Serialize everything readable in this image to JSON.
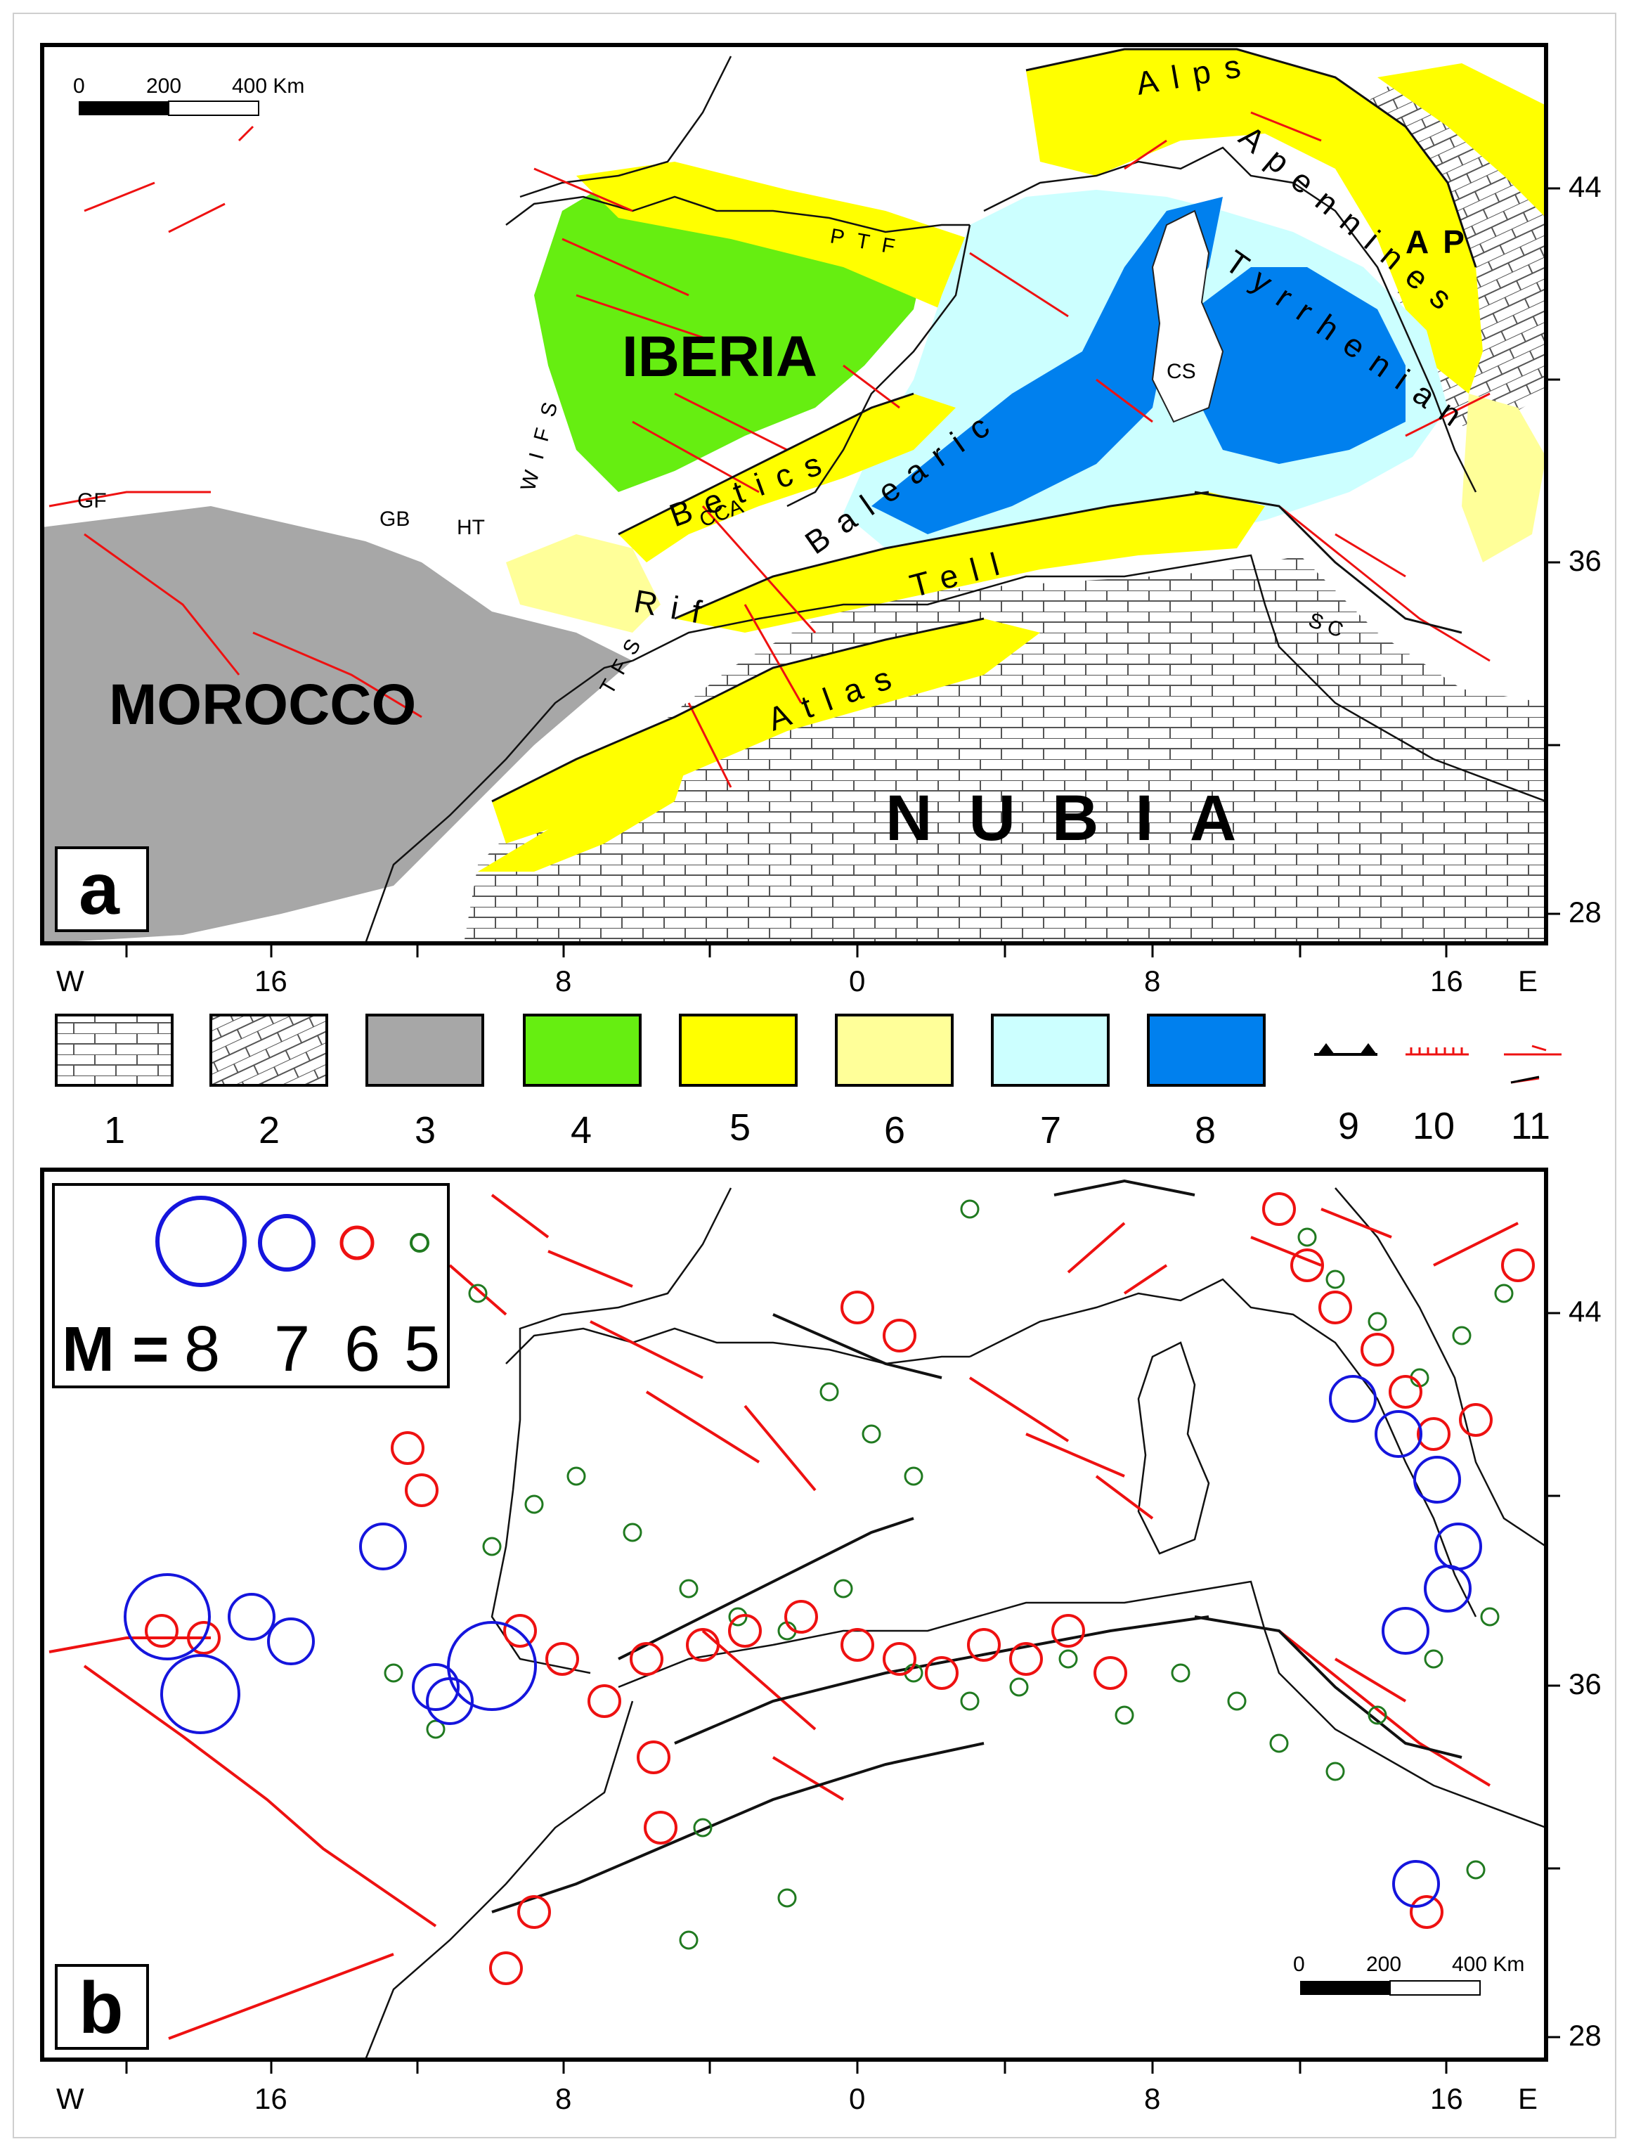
{
  "panel_a": {
    "letter": "a",
    "scale": {
      "t0": "0",
      "t1": "200",
      "t2": "400 Km"
    },
    "regions": {
      "iberia": "IBERIA",
      "morocco": "MOROCCO",
      "nubia": "NUBIA"
    },
    "belts": {
      "alps": "Alps",
      "apennines": "Apennines",
      "ap": "AP",
      "betics": "Betics",
      "balearic": "Balearic",
      "tyrrhenian": "Tyrrhenian",
      "tell": "Tell",
      "atlas": "Atlas",
      "rif": "Rif"
    },
    "abbreviations": {
      "gf": "GF",
      "gb": "GB",
      "ht": "HT",
      "wifs": "WIFS",
      "ptf": "PTF",
      "cca": "CCA",
      "tfs": "TFS",
      "cs": "CS",
      "sc": "SC"
    },
    "lat_labels": [
      "44",
      "36",
      "28"
    ],
    "lon_labels": {
      "w": "W",
      "e": "E",
      "l16w": "16",
      "l8w": "8",
      "l0": "0",
      "l8e": "8",
      "l16e": "16"
    }
  },
  "legend": {
    "items": [
      "1",
      "2",
      "3",
      "4",
      "5",
      "6",
      "7",
      "8",
      "9",
      "10",
      "11"
    ],
    "colors": {
      "c3": "#a7a7a7",
      "c4": "#66ee11",
      "c5": "#ffff00",
      "c6": "#ffff99",
      "c7": "#ccffff",
      "c8": "#0080ee",
      "fault": "#ee1111"
    }
  },
  "panel_b": {
    "letter": "b",
    "magnitude_label": "M =",
    "magnitudes": [
      "8",
      "7",
      "6",
      "5"
    ],
    "scale": {
      "t0": "0",
      "t1": "200",
      "t2": "400 Km"
    },
    "lat_labels": [
      "44",
      "36",
      "28"
    ],
    "lon_labels": {
      "w": "W",
      "e": "E",
      "l16w": "16",
      "l8w": "8",
      "l0": "0",
      "l8e": "8",
      "l16e": "16"
    },
    "colors": {
      "m8": "#1515dd",
      "m7": "#1515dd",
      "m6": "#ee1111",
      "m5": "#207a20"
    }
  }
}
